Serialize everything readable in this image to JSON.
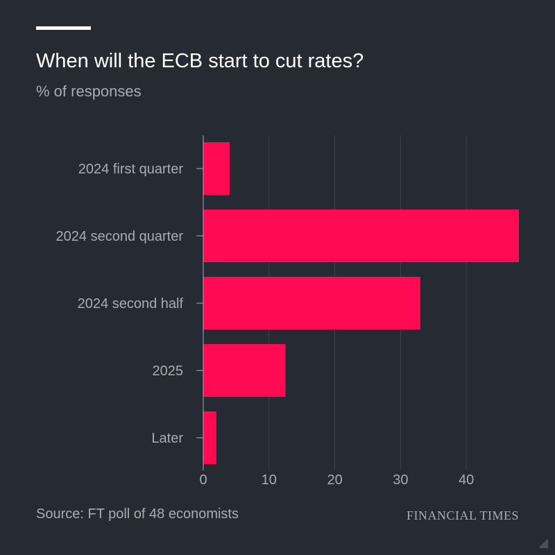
{
  "title": "When will the ECB start to cut rates?",
  "subtitle": "% of responses",
  "source": "Source: FT poll of 48 economists",
  "brand": "FINANCIAL TIMES",
  "colors": {
    "background": "#262a33",
    "bar": "#ff0a53",
    "grid": "#3d424c",
    "text_muted": "#a8acb3"
  },
  "chart_data": {
    "type": "bar",
    "orientation": "horizontal",
    "title": "When will the ECB start to cut rates?",
    "subtitle": "% of responses",
    "categories": [
      "2024 first quarter",
      "2024 second quarter",
      "2024 second half",
      "2025",
      "Later"
    ],
    "values": [
      4,
      48,
      33,
      12.5,
      2
    ],
    "xlim": [
      0,
      48
    ],
    "xticks": [
      0,
      10,
      20,
      30,
      40
    ],
    "grid": true,
    "legend": "none"
  }
}
